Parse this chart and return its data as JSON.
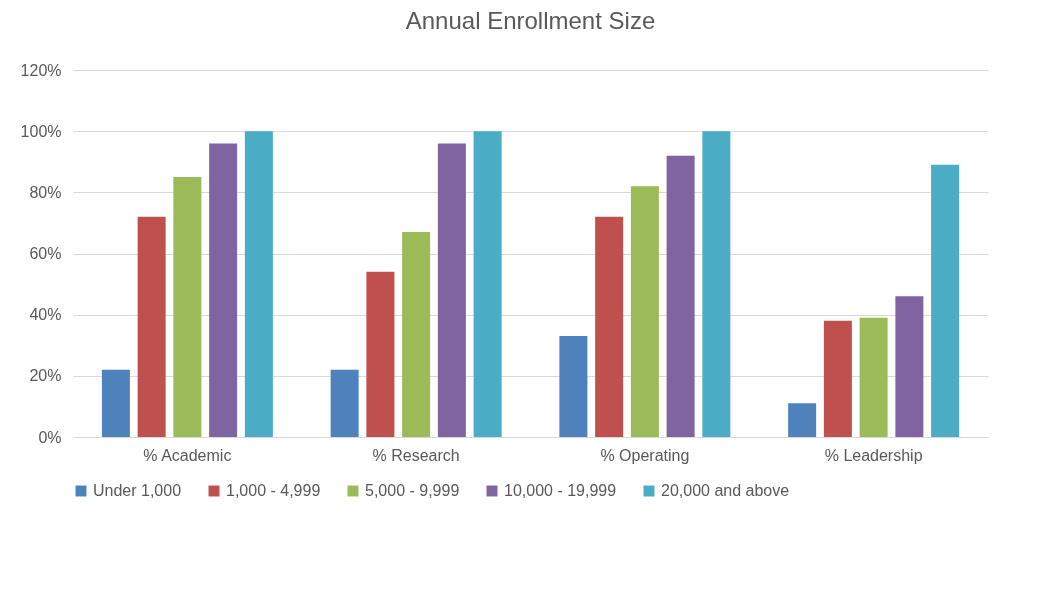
{
  "chart_data": {
    "type": "bar",
    "title": "Annual Enrollment Size",
    "categories": [
      "% Academic",
      "% Research",
      "% Operating",
      "% Leadership"
    ],
    "series": [
      {
        "name": "Under 1,000",
        "color": "#4f81bd",
        "values": [
          22,
          22,
          33,
          11
        ]
      },
      {
        "name": "1,000 - 4,999",
        "color": "#c0504d",
        "values": [
          72,
          54,
          72,
          38
        ]
      },
      {
        "name": "5,000 - 9,999",
        "color": "#9bbb59",
        "values": [
          85,
          67,
          82,
          39
        ]
      },
      {
        "name": "10,000 - 19,999",
        "color": "#8064a2",
        "values": [
          96,
          96,
          92,
          46
        ]
      },
      {
        "name": "20,000 and above",
        "color": "#4bacc6",
        "values": [
          100,
          100,
          100,
          89
        ]
      }
    ],
    "ylim": [
      0,
      120
    ],
    "yticks": [
      {
        "value": 0,
        "label": "0%"
      },
      {
        "value": 20,
        "label": "20%"
      },
      {
        "value": 40,
        "label": "40%"
      },
      {
        "value": 60,
        "label": "60%"
      },
      {
        "value": 80,
        "label": "80%"
      },
      {
        "value": 100,
        "label": "100%"
      },
      {
        "value": 120,
        "label": "120%"
      }
    ],
    "grid": "y",
    "legend": "bottom"
  }
}
